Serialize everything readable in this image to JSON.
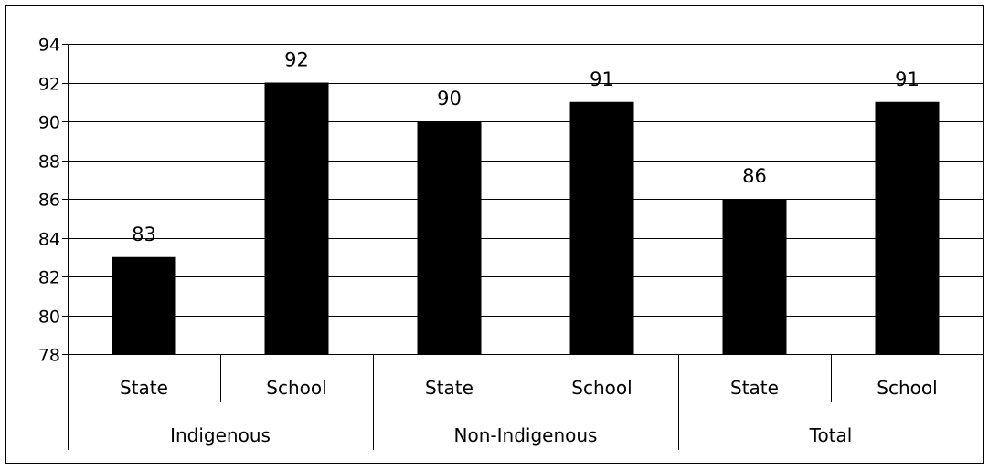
{
  "chart_data": {
    "type": "bar",
    "groups": [
      "Indigenous",
      "Non-Indigenous",
      "Total"
    ],
    "categories": [
      "State",
      "School",
      "State",
      "School",
      "State",
      "School"
    ],
    "values": [
      83,
      92,
      90,
      91,
      86,
      91
    ],
    "data_labels": [
      "83",
      "92",
      "90",
      "91",
      "86",
      "91"
    ],
    "ylim": [
      78,
      94
    ],
    "yticks": [
      "78",
      "80",
      "82",
      "84",
      "86",
      "88",
      "90",
      "92",
      "94"
    ],
    "grid": true,
    "legend": "none",
    "bar_color": "#000000"
  }
}
